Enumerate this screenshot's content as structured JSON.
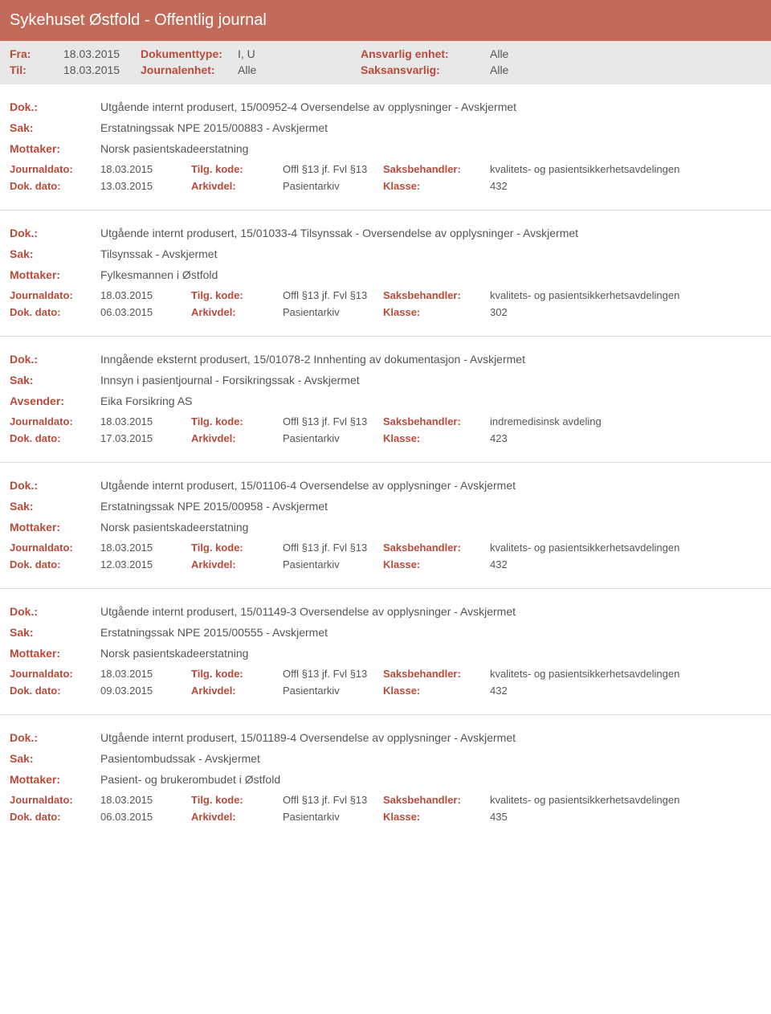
{
  "header": {
    "title": "Sykehuset Østfold - Offentlig journal"
  },
  "filters": {
    "fra_label": "Fra:",
    "fra_val": "18.03.2015",
    "til_label": "Til:",
    "til_val": "18.03.2015",
    "doktype_label": "Dokumenttype:",
    "doktype_val": "I, U",
    "jenhet_label": "Journalenhet:",
    "jenhet_val": "Alle",
    "ansvarlig_label": "Ansvarlig enhet:",
    "ansvarlig_val": "Alle",
    "saksansvarlig_label": "Saksansvarlig:",
    "saksansvarlig_val": "Alle"
  },
  "labels": {
    "dok": "Dok.:",
    "sak": "Sak:",
    "mottaker": "Mottaker:",
    "avsender": "Avsender:",
    "journaldato": "Journaldato:",
    "dokdato": "Dok. dato:",
    "tilgkode": "Tilg. kode:",
    "arkivdel": "Arkivdel:",
    "saksbeh": "Saksbehandler:",
    "klasse": "Klasse:"
  },
  "entries": [
    {
      "dok": "Utgående internt produsert, 15/00952-4 Oversendelse av opplysninger - Avskjermet",
      "sak": "Erstatningssak NPE 2015/00883 - Avskjermet",
      "party_label": "Mottaker:",
      "party_val": "Norsk pasientskadeerstatning",
      "journaldato": "18.03.2015",
      "dokdato": "13.03.2015",
      "tilgkode": "Offl §13 jf. Fvl §13",
      "arkivdel": "Pasientarkiv",
      "saksbeh": "kvalitets- og pasientsikkerhetsavdelingen",
      "klasse": "432"
    },
    {
      "dok": "Utgående internt produsert, 15/01033-4 Tilsynssak - Oversendelse av opplysninger - Avskjermet",
      "sak": "Tilsynssak - Avskjermet",
      "party_label": "Mottaker:",
      "party_val": "Fylkesmannen i Østfold",
      "journaldato": "18.03.2015",
      "dokdato": "06.03.2015",
      "tilgkode": "Offl §13 jf. Fvl §13",
      "arkivdel": "Pasientarkiv",
      "saksbeh": "kvalitets- og pasientsikkerhetsavdelingen",
      "klasse": "302"
    },
    {
      "dok": "Inngående eksternt produsert, 15/01078-2 Innhenting av dokumentasjon - Avskjermet",
      "sak": "Innsyn i pasientjournal - Forsikringssak - Avskjermet",
      "party_label": "Avsender:",
      "party_val": "Eika Forsikring AS",
      "journaldato": "18.03.2015",
      "dokdato": "17.03.2015",
      "tilgkode": "Offl §13 jf. Fvl §13",
      "arkivdel": "Pasientarkiv",
      "saksbeh": "indremedisinsk avdeling",
      "klasse": "423"
    },
    {
      "dok": "Utgående internt produsert, 15/01106-4 Oversendelse av opplysninger - Avskjermet",
      "sak": "Erstatningssak NPE 2015/00958 - Avskjermet",
      "party_label": "Mottaker:",
      "party_val": "Norsk pasientskadeerstatning",
      "journaldato": "18.03.2015",
      "dokdato": "12.03.2015",
      "tilgkode": "Offl §13 jf. Fvl §13",
      "arkivdel": "Pasientarkiv",
      "saksbeh": "kvalitets- og pasientsikkerhetsavdelingen",
      "klasse": "432"
    },
    {
      "dok": "Utgående internt produsert, 15/01149-3 Oversendelse av opplysninger - Avskjermet",
      "sak": "Erstatningssak NPE 2015/00555 - Avskjermet",
      "party_label": "Mottaker:",
      "party_val": "Norsk pasientskadeerstatning",
      "journaldato": "18.03.2015",
      "dokdato": "09.03.2015",
      "tilgkode": "Offl §13 jf. Fvl §13",
      "arkivdel": "Pasientarkiv",
      "saksbeh": "kvalitets- og pasientsikkerhetsavdelingen",
      "klasse": "432"
    },
    {
      "dok": "Utgående internt produsert, 15/01189-4 Oversendelse av opplysninger - Avskjermet",
      "sak": "Pasientombudssak - Avskjermet",
      "party_label": "Mottaker:",
      "party_val": "Pasient- og brukerombudet i Østfold",
      "journaldato": "18.03.2015",
      "dokdato": "06.03.2015",
      "tilgkode": "Offl §13 jf. Fvl §13",
      "arkivdel": "Pasientarkiv",
      "saksbeh": "kvalitets- og pasientsikkerhetsavdelingen",
      "klasse": "435"
    }
  ]
}
